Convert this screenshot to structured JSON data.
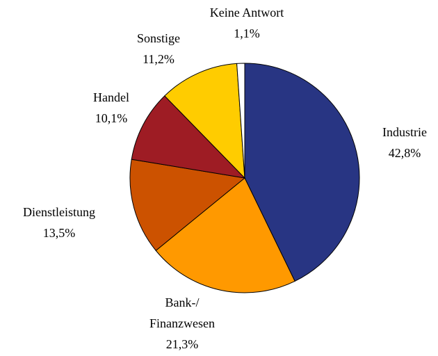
{
  "chart_data": {
    "type": "pie",
    "categories": [
      "Industrie",
      "Bank-/\nFinanzwesen",
      "Dienstleistung",
      "Handel",
      "Sonstige",
      "Keine Antwort"
    ],
    "values": [
      42.8,
      21.3,
      13.5,
      10.1,
      11.2,
      1.1
    ],
    "value_labels": [
      "42,8%",
      "21,3%",
      "13,5%",
      "10,1%",
      "11,2%",
      "1,1%"
    ],
    "colors": [
      "#283583",
      "#ff9900",
      "#cc5200",
      "#9e1c24",
      "#ffcc00",
      "#ffffff"
    ]
  }
}
